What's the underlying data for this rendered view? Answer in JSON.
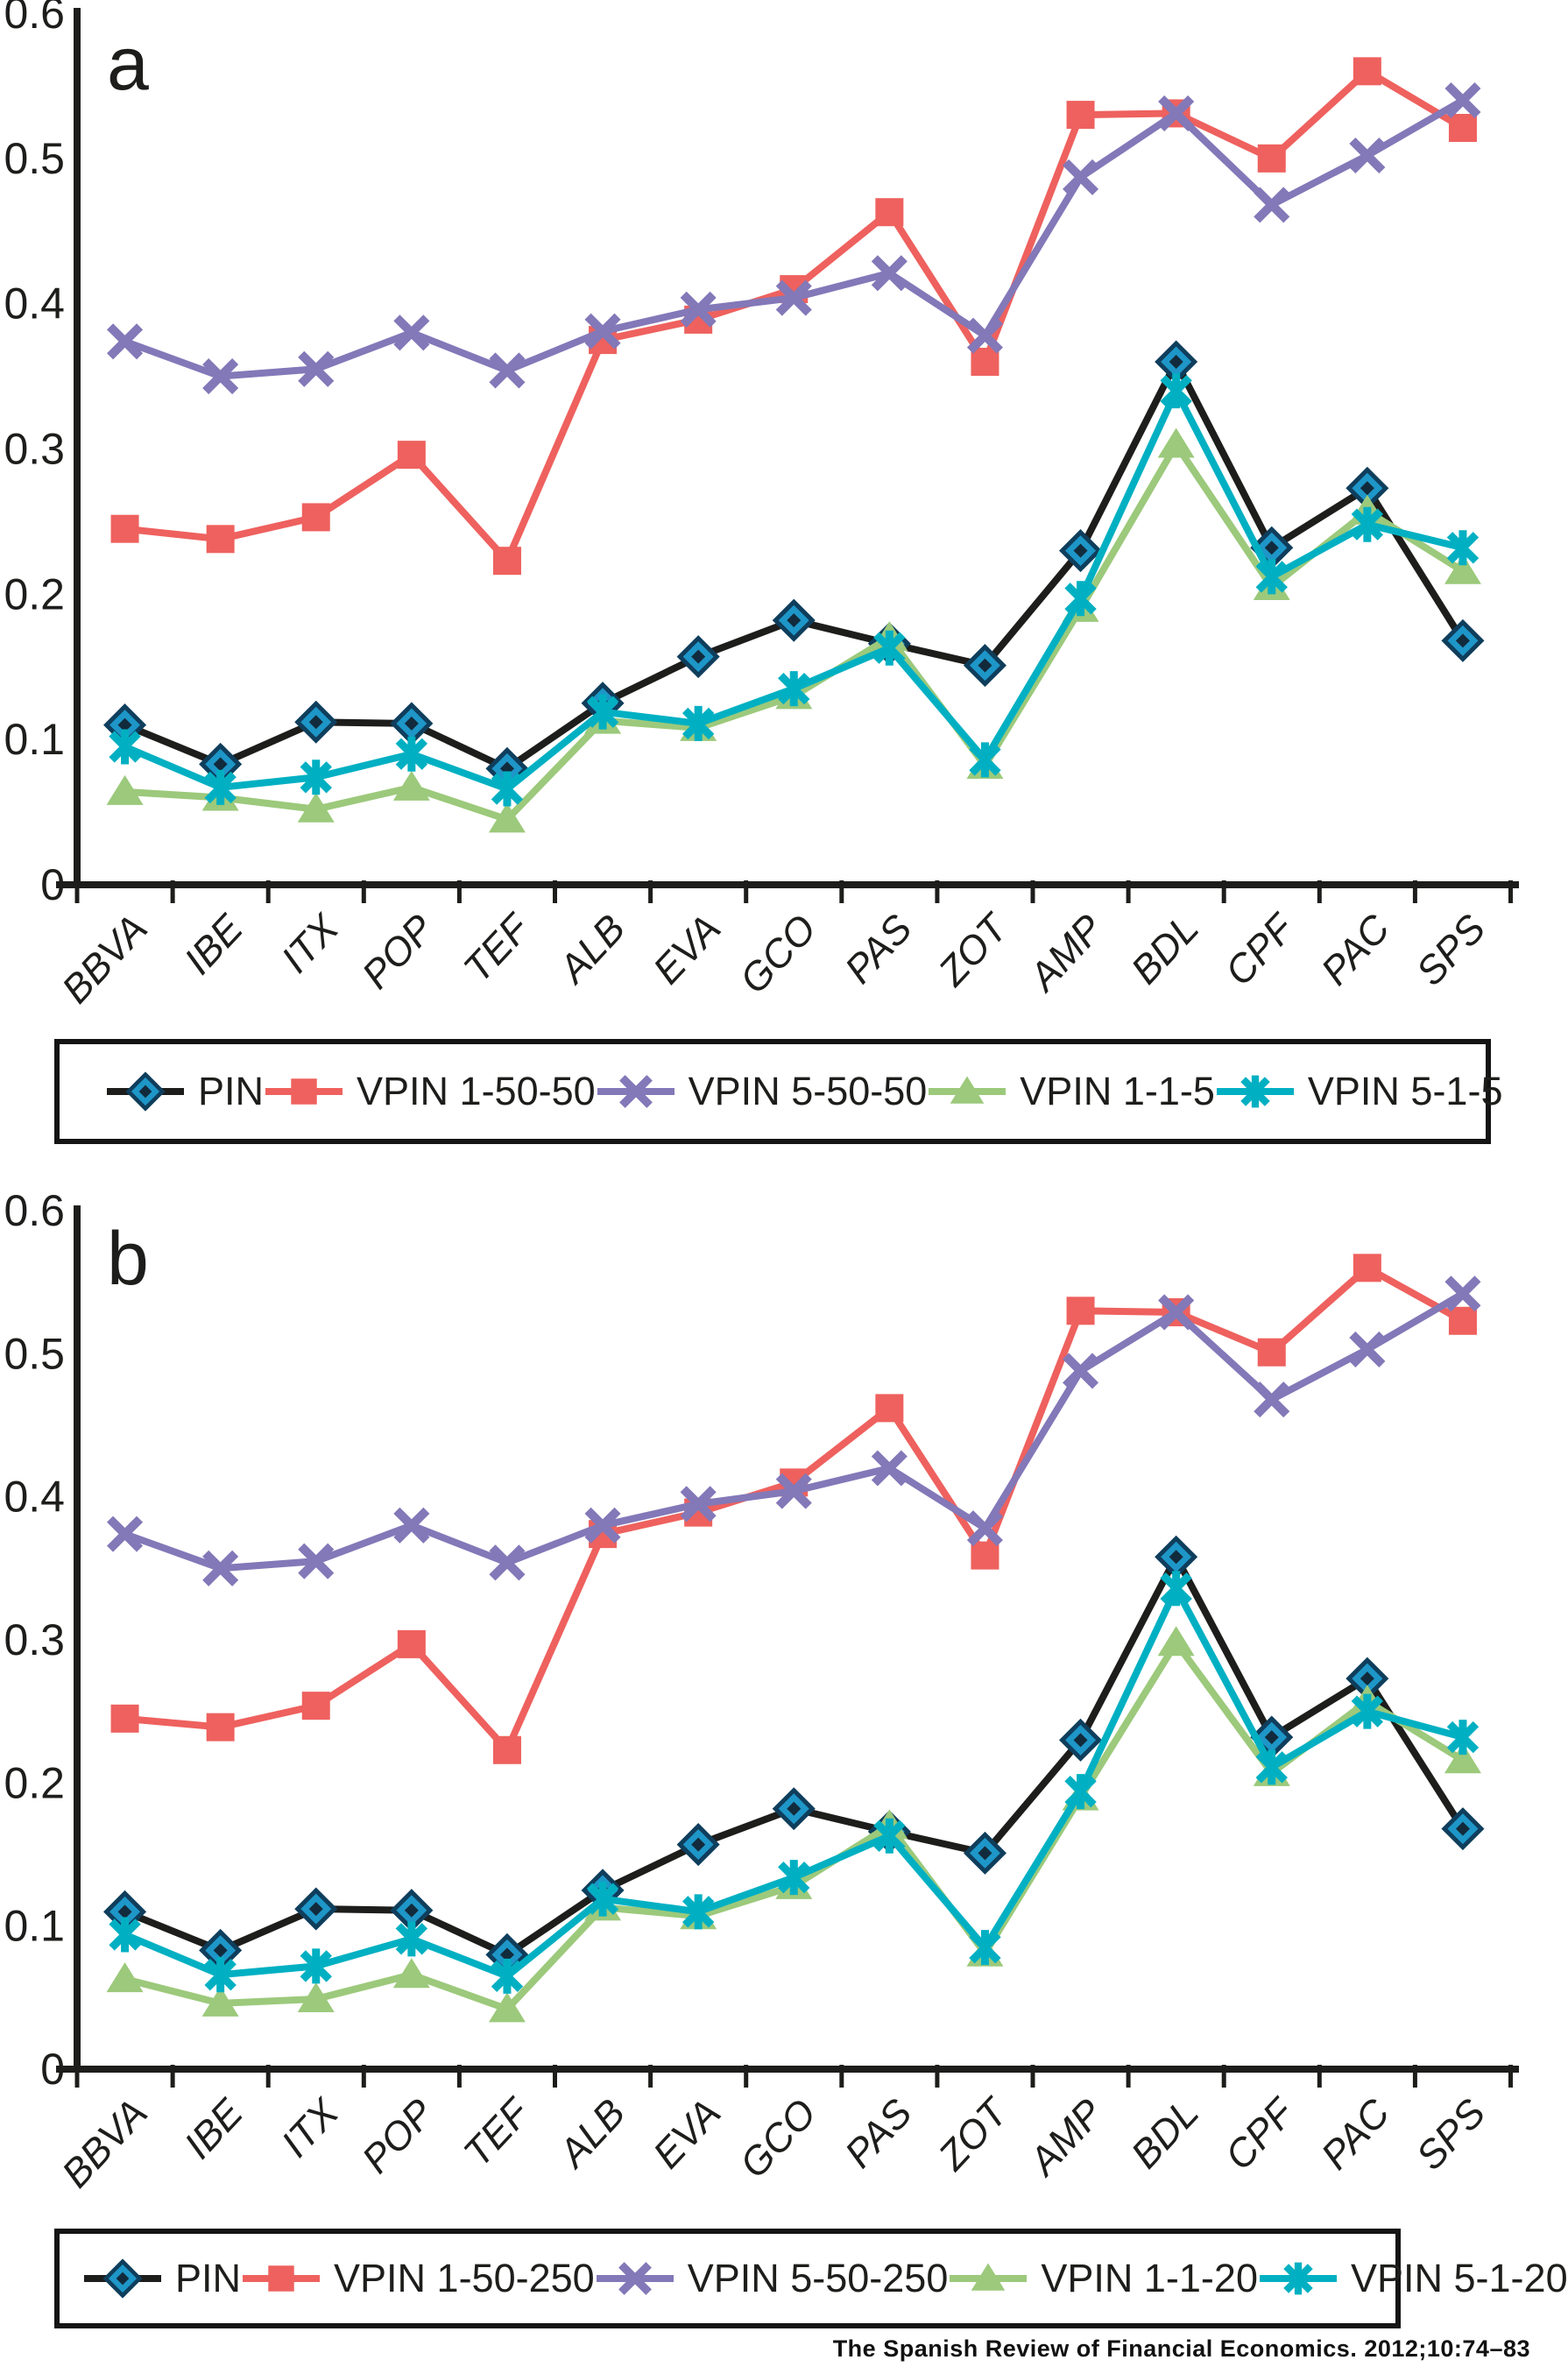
{
  "page": {
    "background": "#ffffff"
  },
  "footer": {
    "text": "The Spanish Review of Financial Economics. 2012;10:74–83"
  },
  "colors": {
    "axis": "#1d1d1b",
    "pin_line": "#1d1d1b",
    "pin_marker_fill": "#1e96c8",
    "pin_marker_stroke": "#0f3e5c",
    "pin_marker_core": "#122b3c",
    "red": "#ee615e",
    "purple": "#8378b8",
    "green": "#9cc97b",
    "teal": "#00b0c2"
  },
  "chart_data": [
    {
      "id": "a",
      "type": "line",
      "panel_label": "a",
      "categories": [
        "BBVA",
        "IBE",
        "ITX",
        "POP",
        "TEF",
        "ALB",
        "EVA",
        "GCO",
        "PAS",
        "ZOT",
        "AMP",
        "BDL",
        "CPF",
        "PAC",
        "SPS"
      ],
      "ylim": [
        0,
        0.6
      ],
      "yticks": [
        "0",
        "0.1",
        "0.2",
        "0.3",
        "0.4",
        "0.5",
        "0.6"
      ],
      "grid": false,
      "legend_position": "bottom",
      "series": [
        {
          "name": "PIN",
          "marker": "diamond",
          "color": "pin",
          "values": [
            0.11,
            0.083,
            0.112,
            0.111,
            0.08,
            0.125,
            0.157,
            0.182,
            0.166,
            0.151,
            0.23,
            0.36,
            0.232,
            0.273,
            0.168
          ]
        },
        {
          "name": "VPIN 1-50-50",
          "marker": "square",
          "color": "red",
          "values": [
            0.245,
            0.238,
            0.253,
            0.296,
            0.223,
            0.375,
            0.389,
            0.41,
            0.463,
            0.36,
            0.53,
            0.531,
            0.5,
            0.56,
            0.521
          ]
        },
        {
          "name": "VPIN 5-50-50",
          "marker": "x",
          "color": "purple",
          "values": [
            0.374,
            0.35,
            0.355,
            0.38,
            0.354,
            0.381,
            0.396,
            0.404,
            0.421,
            0.378,
            0.487,
            0.531,
            0.468,
            0.502,
            0.54
          ]
        },
        {
          "name": "VPIN 1-1-5",
          "marker": "triangle",
          "color": "green",
          "values": [
            0.064,
            0.06,
            0.052,
            0.067,
            0.045,
            0.113,
            0.108,
            0.13,
            0.17,
            0.082,
            0.19,
            0.303,
            0.205,
            0.257,
            0.216
          ]
        },
        {
          "name": "VPIN 5-1-5",
          "marker": "star",
          "color": "teal",
          "values": [
            0.095,
            0.067,
            0.074,
            0.09,
            0.066,
            0.119,
            0.111,
            0.135,
            0.163,
            0.086,
            0.197,
            0.34,
            0.212,
            0.248,
            0.232
          ]
        }
      ]
    },
    {
      "id": "b",
      "type": "line",
      "panel_label": "b",
      "categories": [
        "BBVA",
        "IBE",
        "ITX",
        "POP",
        "TEF",
        "ALB",
        "EVA",
        "GCO",
        "PAS",
        "ZOT",
        "AMP",
        "BDL",
        "CPF",
        "PAC",
        "SPS"
      ],
      "ylim": [
        0,
        0.6
      ],
      "yticks": [
        "0",
        "0.1",
        "0.2",
        "0.3",
        "0.4",
        "0.5",
        "0.6"
      ],
      "grid": false,
      "legend_position": "bottom",
      "series": [
        {
          "name": "PIN",
          "marker": "diamond",
          "color": "pin",
          "values": [
            0.11,
            0.083,
            0.112,
            0.111,
            0.08,
            0.125,
            0.157,
            0.182,
            0.166,
            0.151,
            0.23,
            0.358,
            0.232,
            0.273,
            0.168
          ]
        },
        {
          "name": "VPIN 1-50-250",
          "marker": "square",
          "color": "red",
          "values": [
            0.245,
            0.239,
            0.254,
            0.297,
            0.223,
            0.374,
            0.389,
            0.41,
            0.462,
            0.359,
            0.53,
            0.529,
            0.501,
            0.56,
            0.523
          ]
        },
        {
          "name": "VPIN 5-50-250",
          "marker": "x",
          "color": "purple",
          "values": [
            0.374,
            0.35,
            0.355,
            0.38,
            0.354,
            0.38,
            0.395,
            0.404,
            0.42,
            0.378,
            0.488,
            0.529,
            0.468,
            0.503,
            0.542
          ]
        },
        {
          "name": "VPIN 1-1-20",
          "marker": "triangle",
          "color": "green",
          "values": [
            0.063,
            0.046,
            0.049,
            0.066,
            0.042,
            0.113,
            0.107,
            0.128,
            0.17,
            0.081,
            0.19,
            0.298,
            0.207,
            0.257,
            0.216
          ]
        },
        {
          "name": "VPIN 5-1-20",
          "marker": "star",
          "color": "teal",
          "values": [
            0.094,
            0.066,
            0.072,
            0.091,
            0.065,
            0.119,
            0.11,
            0.134,
            0.163,
            0.085,
            0.194,
            0.336,
            0.211,
            0.25,
            0.232
          ]
        }
      ]
    }
  ]
}
